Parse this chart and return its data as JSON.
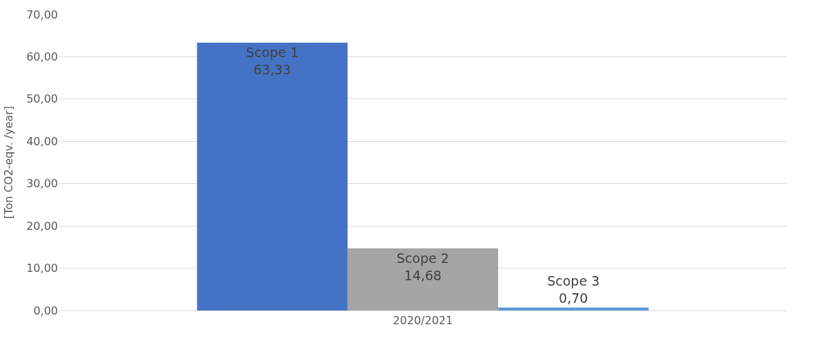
{
  "chart_data": {
    "type": "bar",
    "ylabel": "[Ton CO2-eqv. /year]",
    "categories": [
      "2020/2021"
    ],
    "series": [
      {
        "name": "Scope 1",
        "color": "#4472c4",
        "values": [
          63.33
        ],
        "value_labels": [
          "63,33"
        ]
      },
      {
        "name": "Scope 2",
        "color": "#a5a5a5",
        "values": [
          14.68
        ],
        "value_labels": [
          "14,68"
        ]
      },
      {
        "name": "Scope 3",
        "color": "#5b9bd5",
        "values": [
          0.7
        ],
        "value_labels": [
          "0,70"
        ]
      }
    ],
    "ylim": [
      0,
      70
    ],
    "yticks": [
      {
        "value": 0,
        "label": "0,00"
      },
      {
        "value": 10,
        "label": "10,00"
      },
      {
        "value": 20,
        "label": "20,00"
      },
      {
        "value": 30,
        "label": "30,00"
      },
      {
        "value": 40,
        "label": "40,00"
      },
      {
        "value": 50,
        "label": "50,00"
      },
      {
        "value": 60,
        "label": "60,00"
      },
      {
        "value": 70,
        "label": "70,00"
      }
    ],
    "grid": "y",
    "legend": false
  }
}
